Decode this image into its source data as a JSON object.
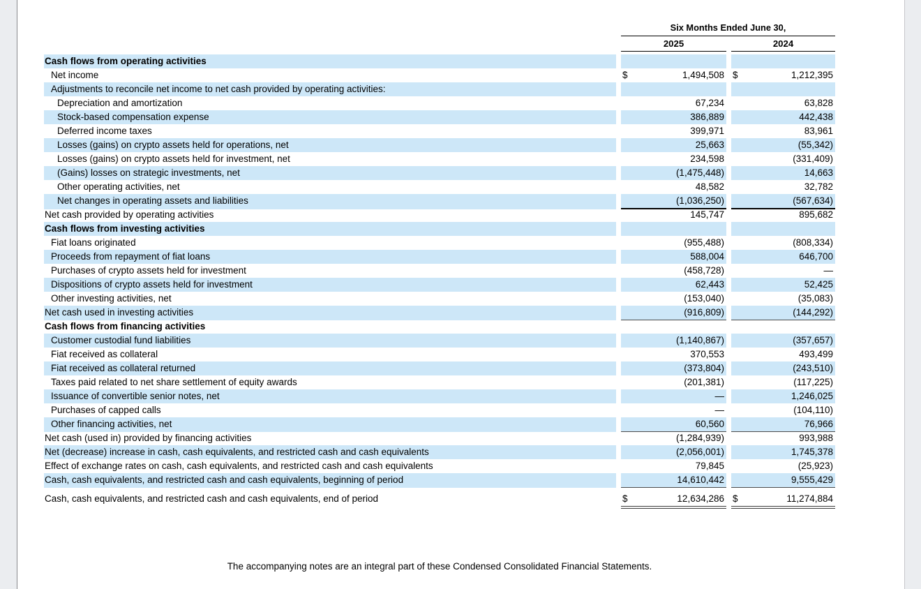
{
  "colors": {
    "row_highlight": "#cde7f8",
    "page_background": "#ffffff",
    "outside_background": "#ebedf0",
    "rule_thick": "#000000",
    "rule_thin": "#4a4a4a"
  },
  "table": {
    "period_header": "Six Months Ended June 30,",
    "col_headers": [
      "2025",
      "2024"
    ],
    "rows": [
      {
        "label": "Cash flows from operating activities",
        "indent": 0,
        "bold": true,
        "shaded": true,
        "v2025": "",
        "v2024": "",
        "dollar": false,
        "border": "none"
      },
      {
        "label": "Net income",
        "indent": 1,
        "bold": false,
        "shaded": false,
        "v2025": "1,494,508",
        "v2024": "1,212,395",
        "dollar": true,
        "border": "none"
      },
      {
        "label": "Adjustments to reconcile net income to net cash provided by operating activities:",
        "indent": 1,
        "bold": false,
        "shaded": true,
        "v2025": "",
        "v2024": "",
        "dollar": false,
        "border": "none"
      },
      {
        "label": "Depreciation and amortization",
        "indent": 2,
        "bold": false,
        "shaded": false,
        "v2025": "67,234",
        "v2024": "63,828",
        "dollar": false,
        "border": "none"
      },
      {
        "label": "Stock-based compensation expense",
        "indent": 2,
        "bold": false,
        "shaded": true,
        "v2025": "386,889",
        "v2024": "442,438",
        "dollar": false,
        "border": "none"
      },
      {
        "label": "Deferred income taxes",
        "indent": 2,
        "bold": false,
        "shaded": false,
        "v2025": "399,971",
        "v2024": "83,961",
        "dollar": false,
        "border": "none"
      },
      {
        "label": "Losses (gains) on crypto assets held for operations, net",
        "indent": 2,
        "bold": false,
        "shaded": true,
        "v2025": "25,663",
        "v2024": "(55,342)",
        "dollar": false,
        "border": "none"
      },
      {
        "label": "Losses (gains) on crypto assets held for investment, net",
        "indent": 2,
        "bold": false,
        "shaded": false,
        "v2025": "234,598",
        "v2024": "(331,409)",
        "dollar": false,
        "border": "none"
      },
      {
        "label": "(Gains) losses on strategic investments, net",
        "indent": 2,
        "bold": false,
        "shaded": true,
        "v2025": "(1,475,448)",
        "v2024": "14,663",
        "dollar": false,
        "border": "none"
      },
      {
        "label": "Other operating activities, net",
        "indent": 2,
        "bold": false,
        "shaded": false,
        "v2025": "48,582",
        "v2024": "32,782",
        "dollar": false,
        "border": "none"
      },
      {
        "label": "Net changes in operating assets and liabilities",
        "indent": 2,
        "bold": false,
        "shaded": true,
        "v2025": "(1,036,250)",
        "v2024": "(567,634)",
        "dollar": false,
        "border": "thick"
      },
      {
        "label": "Net cash provided by operating activities",
        "indent": 0,
        "bold": false,
        "shaded": false,
        "v2025": "145,747",
        "v2024": "895,682",
        "dollar": false,
        "border": "thin"
      },
      {
        "label": "Cash flows from investing activities",
        "indent": 0,
        "bold": true,
        "shaded": true,
        "v2025": "",
        "v2024": "",
        "dollar": false,
        "border": "none"
      },
      {
        "label": "Fiat loans originated",
        "indent": 1,
        "bold": false,
        "shaded": false,
        "v2025": "(955,488)",
        "v2024": "(808,334)",
        "dollar": false,
        "border": "none"
      },
      {
        "label": "Proceeds from repayment of fiat loans",
        "indent": 1,
        "bold": false,
        "shaded": true,
        "v2025": "588,004",
        "v2024": "646,700",
        "dollar": false,
        "border": "none"
      },
      {
        "label": "Purchases of crypto assets held for investment",
        "indent": 1,
        "bold": false,
        "shaded": false,
        "v2025": "(458,728)",
        "v2024": "—",
        "dollar": false,
        "border": "none"
      },
      {
        "label": "Dispositions of crypto assets held for investment",
        "indent": 1,
        "bold": false,
        "shaded": true,
        "v2025": "62,443",
        "v2024": "52,425",
        "dollar": false,
        "border": "none"
      },
      {
        "label": "Other investing activities, net",
        "indent": 1,
        "bold": false,
        "shaded": false,
        "v2025": "(153,040)",
        "v2024": "(35,083)",
        "dollar": false,
        "border": "thick"
      },
      {
        "label": "Net cash used in investing activities",
        "indent": 0,
        "bold": false,
        "shaded": true,
        "v2025": "(916,809)",
        "v2024": "(144,292)",
        "dollar": false,
        "border": "thin"
      },
      {
        "label": "Cash flows from financing activities",
        "indent": 0,
        "bold": true,
        "shaded": false,
        "v2025": "",
        "v2024": "",
        "dollar": false,
        "border": "none"
      },
      {
        "label": "Customer custodial fund liabilities",
        "indent": 1,
        "bold": false,
        "shaded": true,
        "v2025": "(1,140,867)",
        "v2024": "(357,657)",
        "dollar": false,
        "border": "none"
      },
      {
        "label": "Fiat received as collateral",
        "indent": 1,
        "bold": false,
        "shaded": false,
        "v2025": "370,553",
        "v2024": "493,499",
        "dollar": false,
        "border": "none"
      },
      {
        "label": "Fiat received as collateral returned",
        "indent": 1,
        "bold": false,
        "shaded": true,
        "v2025": "(373,804)",
        "v2024": "(243,510)",
        "dollar": false,
        "border": "none"
      },
      {
        "label": "Taxes paid related to net share settlement of equity awards",
        "indent": 1,
        "bold": false,
        "shaded": false,
        "v2025": "(201,381)",
        "v2024": "(117,225)",
        "dollar": false,
        "border": "none"
      },
      {
        "label": "Issuance of convertible senior notes, net",
        "indent": 1,
        "bold": false,
        "shaded": true,
        "v2025": "—",
        "v2024": "1,246,025",
        "dollar": false,
        "border": "none"
      },
      {
        "label": "Purchases of capped calls",
        "indent": 1,
        "bold": false,
        "shaded": false,
        "v2025": "—",
        "v2024": "(104,110)",
        "dollar": false,
        "border": "none"
      },
      {
        "label": "Other financing activities, net",
        "indent": 1,
        "bold": false,
        "shaded": true,
        "v2025": "60,560",
        "v2024": "76,966",
        "dollar": false,
        "border": "thin"
      },
      {
        "label": "Net cash (used in) provided by financing activities",
        "indent": 0,
        "bold": false,
        "shaded": false,
        "v2025": "(1,284,939)",
        "v2024": "993,988",
        "dollar": false,
        "border": "thick"
      },
      {
        "label": "Net (decrease) increase in cash, cash equivalents, and restricted cash and cash equivalents",
        "indent": 0,
        "bold": false,
        "shaded": true,
        "v2025": "(2,056,001)",
        "v2024": "1,745,378",
        "dollar": false,
        "border": "none"
      },
      {
        "label": "Effect of exchange rates on cash, cash equivalents, and restricted cash and cash equivalents",
        "indent": 0,
        "bold": false,
        "shaded": false,
        "v2025": "79,845",
        "v2024": "(25,923)",
        "dollar": false,
        "border": "none"
      },
      {
        "label": "Cash, cash equivalents, and restricted cash and cash equivalents, beginning of period",
        "indent": 0,
        "bold": false,
        "shaded": true,
        "v2025": "14,610,442",
        "v2024": "9,555,429",
        "dollar": false,
        "border": "thin"
      },
      {
        "label": "Cash, cash equivalents, and restricted cash and cash equivalents, end of period",
        "indent": 0,
        "bold": false,
        "shaded": false,
        "v2025": "12,634,286",
        "v2024": "11,274,884",
        "dollar": true,
        "border": "double",
        "spaced": true
      }
    ],
    "currency_symbol": "$"
  },
  "footer": {
    "note": "The accompanying notes are an integral part of these Condensed Consolidated Financial Statements."
  }
}
